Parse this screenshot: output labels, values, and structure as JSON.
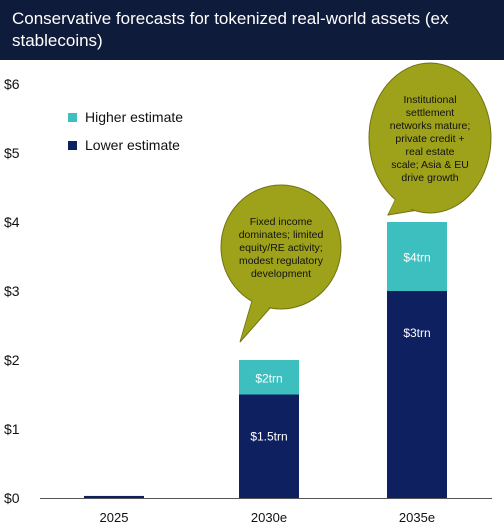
{
  "header": {
    "title": "Conservative forecasts for tokenized real-world assets (ex stablecoins)"
  },
  "colors": {
    "header_bg": "#0f1b3a",
    "lower": "#0e2060",
    "higher": "#3ebfbf",
    "callout_fill": "#9ea21a",
    "callout_stroke": "#6f7312"
  },
  "legend": [
    {
      "label": "Higher estimate",
      "color": "#3ebfbf"
    },
    {
      "label": "Lower estimate",
      "color": "#0e2060"
    }
  ],
  "callouts": [
    {
      "category": "2030e",
      "text": "Fixed income dominates; limited equity/RE activity; modest regulatory development"
    },
    {
      "category": "2035e",
      "text": "Institutional settlement networks mature; private credit + real estate scale; Asia & EU drive growth"
    }
  ],
  "chart_data": {
    "type": "bar",
    "stacked": true,
    "categories": [
      "2025",
      "2030e",
      "2035e"
    ],
    "series": [
      {
        "name": "Lower estimate",
        "values": [
          0.03,
          1.5,
          3
        ],
        "labels": [
          "",
          "$1.5trn",
          "$3trn"
        ]
      },
      {
        "name": "Higher estimate",
        "values": [
          0,
          0.5,
          1
        ],
        "labels": [
          "",
          "$2trn",
          "$4trn"
        ]
      }
    ],
    "y_ticks": [
      "$0",
      "$1",
      "$2",
      "$3",
      "$4",
      "$5",
      "$6"
    ],
    "ylim": [
      0,
      6
    ],
    "grid": false,
    "legend_position": "top-left"
  }
}
